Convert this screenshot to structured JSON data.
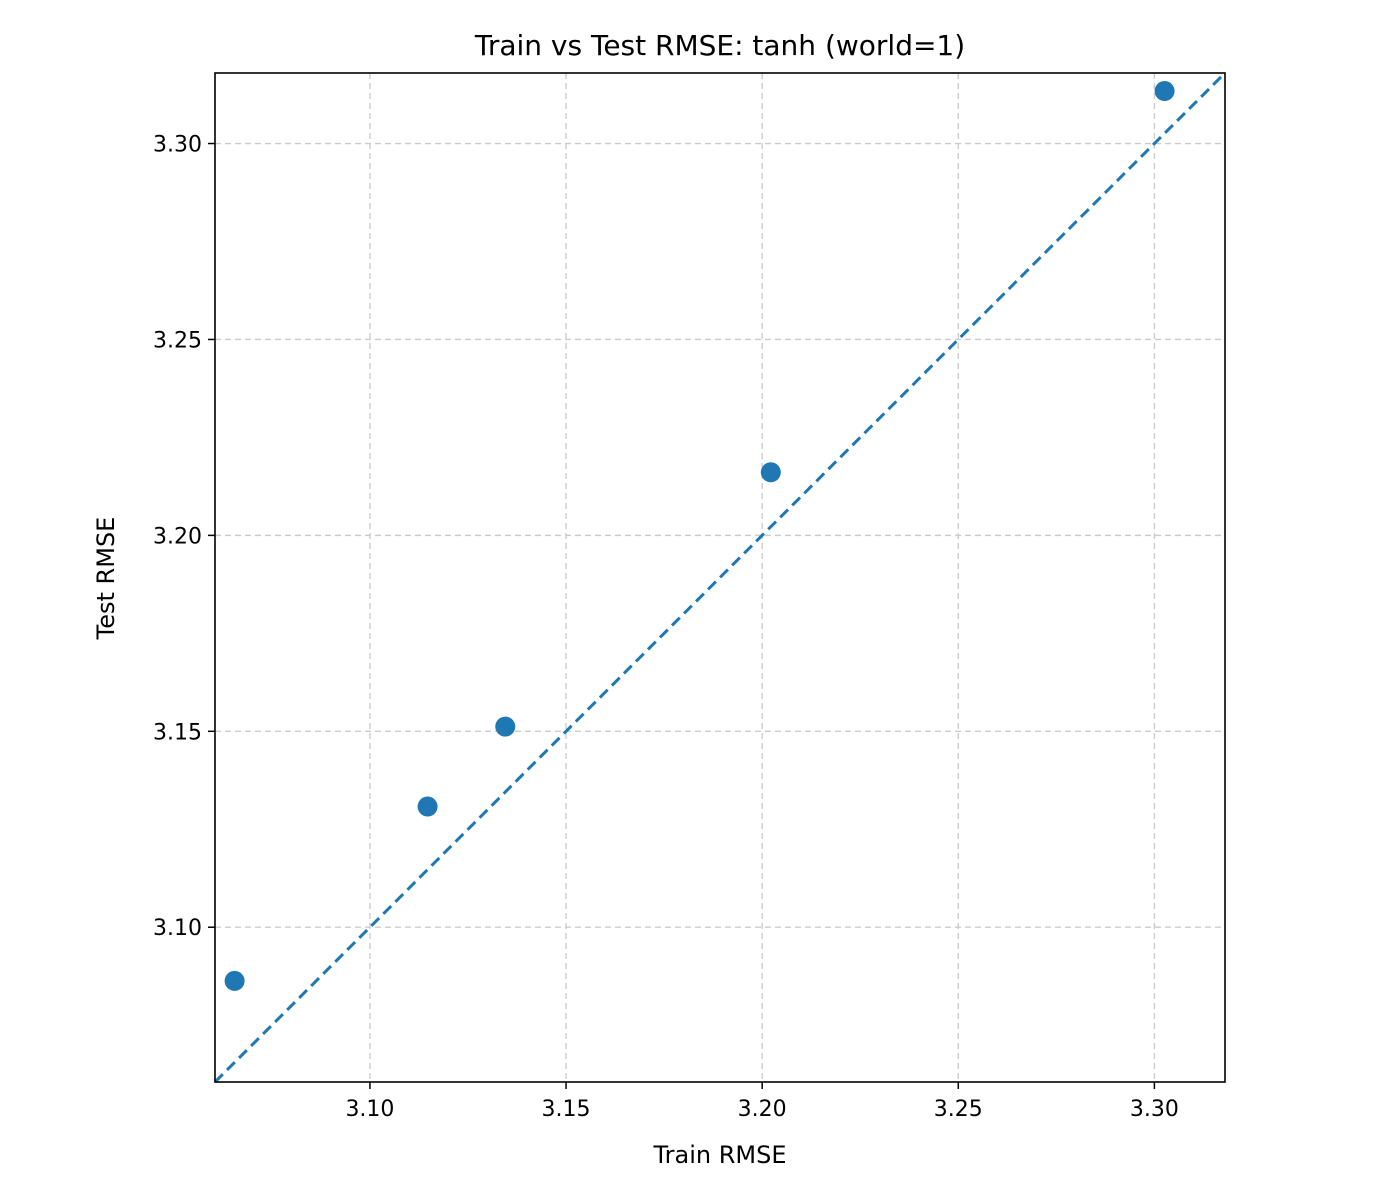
{
  "chart_data": {
    "type": "scatter",
    "title": "Train vs Test RMSE: tanh (world=1)",
    "xlabel": "Train RMSE",
    "ylabel": "Test RMSE",
    "xlim": [
      3.0605,
      3.318
    ],
    "ylim": [
      3.0605,
      3.318
    ],
    "xticks": [
      3.1,
      3.15,
      3.2,
      3.25,
      3.3
    ],
    "yticks": [
      3.1,
      3.15,
      3.2,
      3.25,
      3.3
    ],
    "xtick_labels": [
      "3.10",
      "3.15",
      "3.20",
      "3.25",
      "3.30"
    ],
    "ytick_labels": [
      "3.10",
      "3.15",
      "3.20",
      "3.25",
      "3.30"
    ],
    "grid": true,
    "points": [
      {
        "x": 3.0655,
        "y": 3.0863
      },
      {
        "x": 3.1147,
        "y": 3.1308
      },
      {
        "x": 3.1345,
        "y": 3.1512
      },
      {
        "x": 3.2022,
        "y": 3.2161
      },
      {
        "x": 3.3026,
        "y": 3.3134
      }
    ],
    "reference_line": "y = x",
    "colors": {
      "points": "#1f77b4",
      "reference_line": "#1f77b4"
    }
  }
}
